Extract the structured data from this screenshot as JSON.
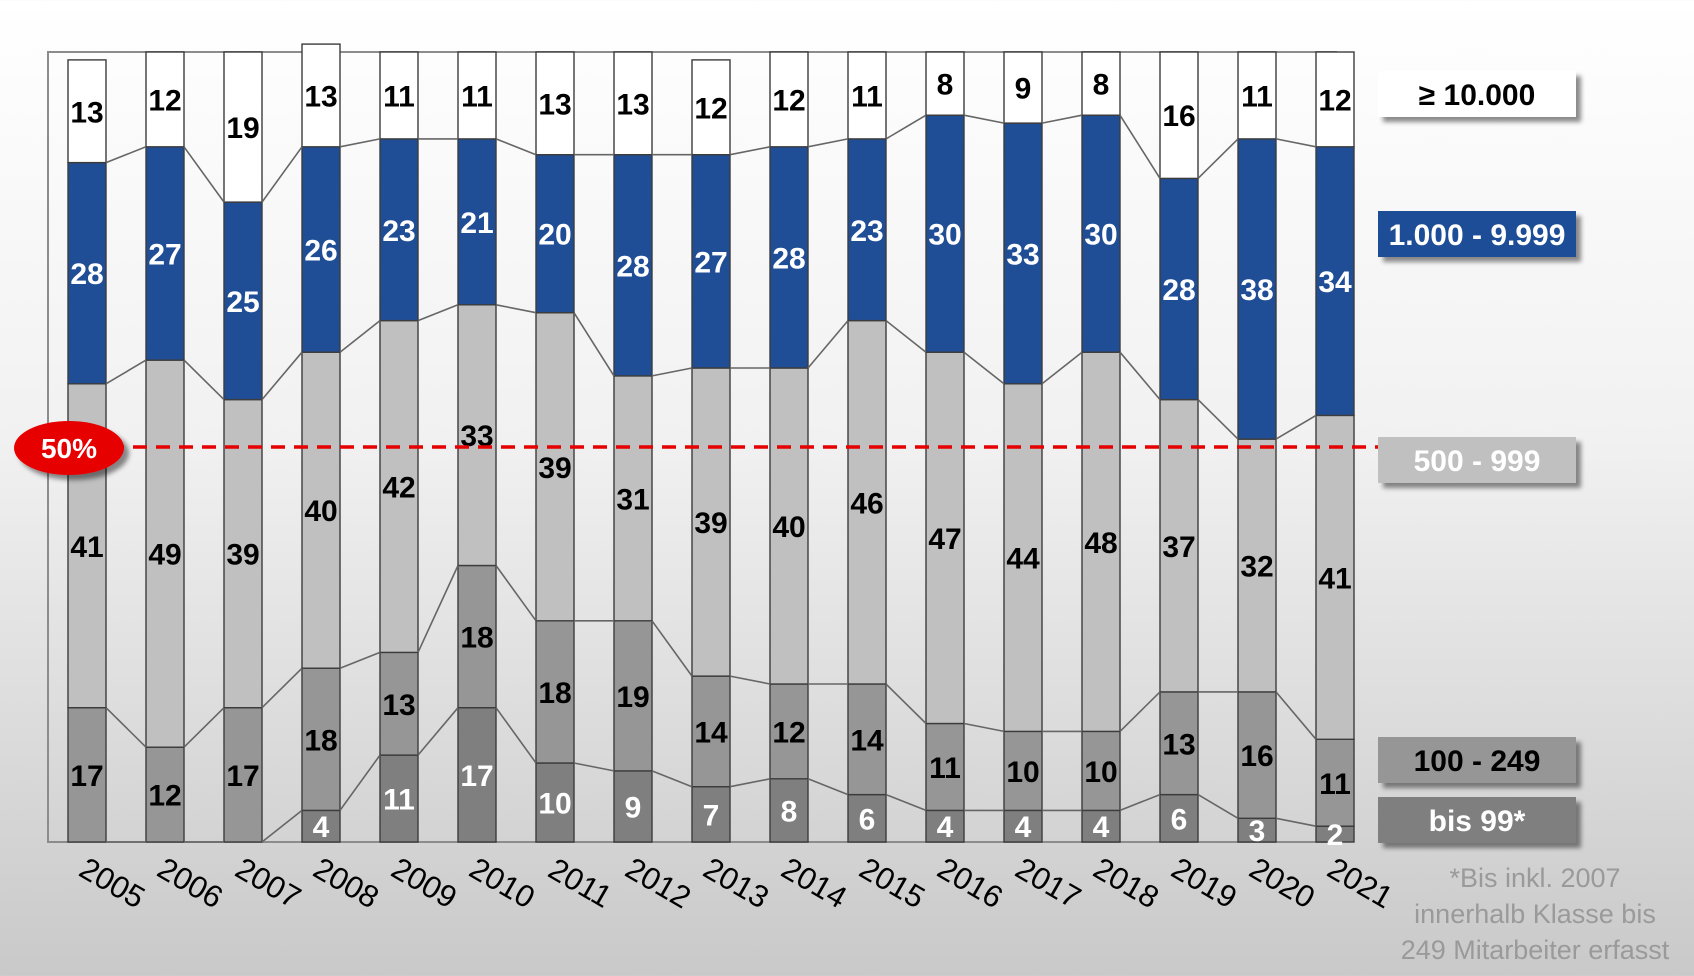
{
  "chart_data": {
    "type": "bar",
    "stacked": true,
    "percent": true,
    "categories": [
      "2005",
      "2006",
      "2007",
      "2008",
      "2009",
      "2010",
      "2011",
      "2012",
      "2013",
      "2014",
      "2015",
      "2016",
      "2017",
      "2018",
      "2019",
      "2020",
      "2021"
    ],
    "series": [
      {
        "name": "bis 99*",
        "color": "#7f7f7f",
        "values": [
          null,
          null,
          null,
          4,
          11,
          17,
          10,
          9,
          7,
          8,
          6,
          4,
          4,
          4,
          6,
          3,
          2
        ]
      },
      {
        "name": "100 - 249",
        "color": "#969696",
        "values": [
          17,
          12,
          17,
          18,
          13,
          18,
          18,
          19,
          14,
          12,
          14,
          11,
          10,
          10,
          13,
          16,
          11
        ]
      },
      {
        "name": "500 - 999",
        "color": "#c0c0c0",
        "values": [
          41,
          49,
          39,
          40,
          42,
          33,
          39,
          31,
          39,
          40,
          46,
          47,
          44,
          48,
          37,
          32,
          41
        ]
      },
      {
        "name": "1.000 - 9.999",
        "color": "#1f4e96",
        "values": [
          28,
          27,
          25,
          26,
          23,
          21,
          20,
          28,
          27,
          28,
          23,
          30,
          33,
          30,
          28,
          38,
          34
        ]
      },
      {
        "name": "≥ 10.000",
        "color": "#ffffff",
        "values": [
          13,
          12,
          19,
          13,
          11,
          11,
          13,
          13,
          12,
          12,
          11,
          8,
          9,
          8,
          16,
          11,
          12
        ]
      }
    ],
    "reference_line": {
      "value": 50,
      "label": "50%",
      "color": "#e60000"
    },
    "ylim": [
      0,
      100
    ],
    "grid": false,
    "legend_position": "right"
  },
  "footnote": [
    "*Bis inkl. 2007",
    "innerhalb Klasse bis",
    "249 Mitarbeiter erfasst"
  ]
}
